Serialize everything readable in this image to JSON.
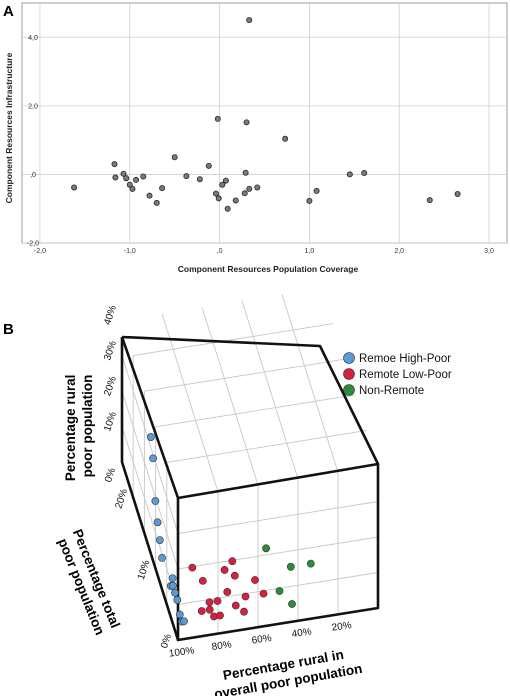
{
  "chart_data": [
    {
      "panel": "A",
      "type": "scatter",
      "xlabel": "Component Resources Population Coverage",
      "ylabel": "Component Resources Infrastructure",
      "xlim": [
        -2.2,
        3.2
      ],
      "ylim": [
        -2.0,
        5.0
      ],
      "xticks": [
        -2.0,
        -1.0,
        0.0,
        1.0,
        2.0,
        3.0
      ],
      "xtick_labels": [
        "-2,0",
        "-1,0",
        ",0",
        "1,0",
        "2,0",
        "3,0"
      ],
      "yticks": [
        -2.0,
        0.0,
        2.0,
        4.0
      ],
      "ytick_labels": [
        "-2,0",
        ",0",
        "2,0",
        "4,0"
      ],
      "grid": true,
      "points": [
        {
          "x": -1.62,
          "y": -0.38
        },
        {
          "x": -1.17,
          "y": 0.3
        },
        {
          "x": -1.16,
          "y": -0.09
        },
        {
          "x": -1.07,
          "y": 0.02
        },
        {
          "x": -1.04,
          "y": -0.11
        },
        {
          "x": -1.0,
          "y": -0.3
        },
        {
          "x": -0.97,
          "y": -0.42
        },
        {
          "x": -0.93,
          "y": -0.16
        },
        {
          "x": -0.85,
          "y": -0.06
        },
        {
          "x": -0.78,
          "y": -0.62
        },
        {
          "x": -0.7,
          "y": -0.83
        },
        {
          "x": -0.64,
          "y": -0.4
        },
        {
          "x": -0.5,
          "y": 0.5
        },
        {
          "x": -0.37,
          "y": -0.05
        },
        {
          "x": -0.22,
          "y": -0.14
        },
        {
          "x": -0.12,
          "y": 0.25
        },
        {
          "x": -0.04,
          "y": -0.56
        },
        {
          "x": -0.02,
          "y": 1.62
        },
        {
          "x": -0.01,
          "y": -0.7
        },
        {
          "x": 0.03,
          "y": -0.3
        },
        {
          "x": 0.07,
          "y": -0.18
        },
        {
          "x": 0.09,
          "y": -1.0
        },
        {
          "x": 0.18,
          "y": -0.76
        },
        {
          "x": 0.28,
          "y": -0.55
        },
        {
          "x": 0.29,
          "y": 0.05
        },
        {
          "x": 0.3,
          "y": 1.52
        },
        {
          "x": 0.33,
          "y": -0.42
        },
        {
          "x": 0.33,
          "y": 4.5
        },
        {
          "x": 0.42,
          "y": -0.38
        },
        {
          "x": 0.73,
          "y": 1.04
        },
        {
          "x": 1.0,
          "y": -0.77
        },
        {
          "x": 1.08,
          "y": -0.48
        },
        {
          "x": 1.45,
          "y": 0.0
        },
        {
          "x": 1.61,
          "y": 0.04
        },
        {
          "x": 2.34,
          "y": -0.75
        },
        {
          "x": 2.65,
          "y": -0.57
        }
      ]
    },
    {
      "panel": "B",
      "type": "scatter",
      "dimensions": "3d",
      "axes": {
        "x": {
          "label": "Percentage rural in overall poor population",
          "ticks": [
            "100%",
            "80%",
            "60%",
            "40%",
            "20%"
          ]
        },
        "y": {
          "label": "Percentage total poor population",
          "ticks": [
            "0%",
            "10%",
            "20%"
          ]
        },
        "z": {
          "label": "Percentage rural poor population",
          "ticks": [
            "0%",
            "10%",
            "20%",
            "30%",
            "40%"
          ]
        }
      },
      "legend_position": "top-right",
      "series": [
        {
          "name": "Remoe High-Poor",
          "color": "#5b9bd5",
          "points": [
            [
              99,
              13,
              31
            ],
            [
              99,
              12,
              27
            ],
            [
              99,
              11,
              17
            ],
            [
              99,
              10,
              13
            ],
            [
              99,
              9,
              10
            ],
            [
              99,
              8,
              7
            ],
            [
              98,
              5,
              5
            ],
            [
              97,
              5,
              5
            ],
            [
              96,
              6,
              5
            ],
            [
              97,
              4,
              5
            ],
            [
              97,
              3,
              5
            ],
            [
              98,
              1,
              5
            ],
            [
              98,
              0,
              5
            ],
            [
              97,
              0,
              5
            ]
          ]
        },
        {
          "name": "Remote Low-Poor",
          "color": "#d8203c",
          "points": [
            [
              85,
              7,
              5
            ],
            [
              82,
              5,
              5
            ],
            [
              70,
              6,
              5
            ],
            [
              65,
              7,
              5
            ],
            [
              66,
              5,
              5
            ],
            [
              72,
              3,
              5
            ],
            [
              78,
              2,
              5
            ],
            [
              82,
              2,
              5
            ],
            [
              83,
              1,
              5
            ],
            [
              82,
              0,
              5
            ],
            [
              79,
              0,
              5
            ],
            [
              70,
              1,
              5
            ],
            [
              67,
              0,
              5
            ],
            [
              64,
              2,
              5
            ],
            [
              55,
              2,
              5
            ],
            [
              57,
              4,
              5
            ],
            [
              87,
              1,
              5
            ]
          ]
        },
        {
          "name": "Non-Remote",
          "color": "#2e8b3a",
          "points": [
            [
              47,
              8,
              5
            ],
            [
              38,
              5,
              5
            ],
            [
              28,
              5,
              5
            ],
            [
              47,
              2,
              5
            ],
            [
              43,
              0,
              5
            ]
          ]
        }
      ]
    }
  ]
}
